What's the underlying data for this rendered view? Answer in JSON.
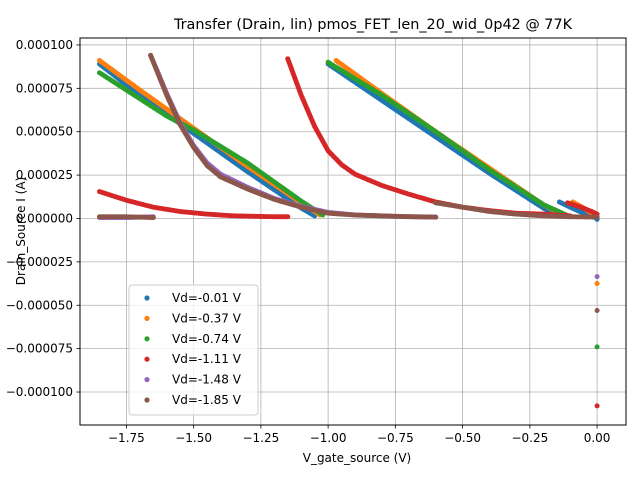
{
  "chart_data": {
    "type": "scatter",
    "title": "Transfer (Drain, lin) pmos_FET_len_20_wid_0p42 @ 77K",
    "xlabel": "V_gate_source (V)",
    "ylabel": "Drain_Source I (A)",
    "xlim": [
      -1.9225,
      0.1075
    ],
    "ylim": [
      -0.000119,
      0.000104
    ],
    "x_ticks": [
      -1.75,
      -1.5,
      -1.25,
      -1.0,
      -0.75,
      -0.5,
      -0.25,
      0.0
    ],
    "x_tick_labels": [
      "−1.75",
      "−1.50",
      "−1.25",
      "−1.00",
      "−0.75",
      "−0.50",
      "−0.25",
      "0.00"
    ],
    "y_ticks": [
      -0.0001,
      -7.5e-05,
      -5e-05,
      -2.5e-05,
      0.0,
      2.5e-05,
      5e-05,
      7.5e-05,
      0.0001
    ],
    "y_tick_labels": [
      "−0.000100",
      "−0.000075",
      "−0.000050",
      "−0.000025",
      "0.000000",
      "0.000025",
      "0.000050",
      "0.000075",
      "0.000100"
    ],
    "grid": true,
    "legend_position": "lower-left",
    "series": [
      {
        "name": "Vd=-0.01 V",
        "color": "#1f77b4",
        "segments": [
          [
            [
              -1.85,
              8.9e-05
            ],
            [
              -1.7,
              7.1e-05
            ],
            [
              -1.5,
              4.9e-05
            ],
            [
              -1.3,
              2.7e-05
            ],
            [
              -1.1,
              6e-06
            ],
            [
              -1.05,
              1.5e-06
            ]
          ],
          [
            [
              -1.0,
              8.9e-05
            ],
            [
              -0.8,
              6.8e-05
            ],
            [
              -0.6,
              4.7e-05
            ],
            [
              -0.4,
              2.6e-05
            ],
            [
              -0.2,
              6e-06
            ],
            [
              -0.15,
              1.5e-06
            ]
          ],
          [
            [
              -0.14,
              9.5e-06
            ],
            [
              -0.1,
              6.5e-06
            ],
            [
              -0.05,
              3e-06
            ],
            [
              0.0,
              0.0
            ]
          ]
        ],
        "points": [
          [
            0.0,
            -5e-07
          ]
        ]
      },
      {
        "name": "Vd=-0.37 V",
        "color": "#ff7f0e",
        "segments": [
          [
            [
              -1.85,
              9.1e-05
            ],
            [
              -1.7,
              7.4e-05
            ],
            [
              -1.5,
              5.2e-05
            ],
            [
              -1.3,
              3e-05
            ],
            [
              -1.1,
              9e-06
            ],
            [
              -1.03,
              2e-06
            ]
          ],
          [
            [
              -0.97,
              9.1e-05
            ],
            [
              -0.8,
              7.2e-05
            ],
            [
              -0.6,
              5e-05
            ],
            [
              -0.4,
              2.9e-05
            ],
            [
              -0.2,
              8e-06
            ],
            [
              -0.12,
              1.5e-06
            ]
          ],
          [
            [
              -0.09,
              9.5e-06
            ],
            [
              -0.05,
              6e-06
            ],
            [
              0.0,
              1e-06
            ]
          ]
        ],
        "points": [
          [
            0.0,
            -3.75e-05
          ]
        ]
      },
      {
        "name": "Vd=-0.74 V",
        "color": "#2ca02c",
        "segments": [
          [
            [
              -1.85,
              8.4e-05
            ],
            [
              -1.75,
              7.4e-05
            ],
            [
              -1.6,
              5.9e-05
            ],
            [
              -1.5,
              5.1e-05
            ],
            [
              -1.3,
              3.2e-05
            ],
            [
              -1.1,
              1e-05
            ],
            [
              -1.02,
              2e-06
            ]
          ],
          [
            [
              -1.0,
              9e-05
            ],
            [
              -0.8,
              7.1e-05
            ],
            [
              -0.6,
              5e-05
            ],
            [
              -0.4,
              2.8e-05
            ],
            [
              -0.2,
              8e-06
            ],
            [
              -0.1,
              1e-06
            ]
          ]
        ],
        "points": [
          [
            0.0,
            -7.4e-05
          ]
        ]
      },
      {
        "name": "Vd=-1.11 V",
        "color": "#d62728",
        "segments": [
          [
            [
              -1.85,
              1.55e-05
            ],
            [
              -1.75,
              1.05e-05
            ],
            [
              -1.65,
              6.5e-06
            ],
            [
              -1.55,
              4e-06
            ],
            [
              -1.45,
              2.5e-06
            ],
            [
              -1.35,
              1.5e-06
            ],
            [
              -1.2,
              1e-06
            ],
            [
              -1.15,
              1e-06
            ]
          ],
          [
            [
              -1.15,
              9.2e-05
            ],
            [
              -1.1,
              7.1e-05
            ],
            [
              -1.05,
              5.3e-05
            ],
            [
              -1.0,
              3.9e-05
            ],
            [
              -0.95,
              3.1e-05
            ],
            [
              -0.9,
              2.55e-05
            ],
            [
              -0.8,
              1.9e-05
            ],
            [
              -0.7,
              1.4e-05
            ],
            [
              -0.6,
              9.5e-06
            ],
            [
              -0.5,
              6.5e-06
            ],
            [
              -0.4,
              4.5e-06
            ],
            [
              -0.3,
              3e-06
            ],
            [
              -0.2,
              2.5e-06
            ],
            [
              -0.1,
              1.5e-06
            ]
          ],
          [
            [
              -0.11,
              9e-06
            ],
            [
              -0.06,
              6.5e-06
            ],
            [
              -0.02,
              4e-06
            ],
            [
              0.0,
              2.5e-06
            ]
          ]
        ],
        "points": [
          [
            0.0,
            -0.000108
          ]
        ]
      },
      {
        "name": "Vd=-1.48 V",
        "color": "#9467bd",
        "segments": [
          [
            [
              -1.85,
              5e-07
            ],
            [
              -1.75,
              5e-07
            ],
            [
              -1.65,
              1e-06
            ]
          ],
          [
            [
              -1.66,
              9.4e-05
            ],
            [
              -1.6,
              7.2e-05
            ],
            [
              -1.55,
              5.5e-05
            ],
            [
              -1.5,
              4.2e-05
            ],
            [
              -1.45,
              3.2e-05
            ],
            [
              -1.4,
              2.55e-05
            ],
            [
              -1.3,
              1.8e-05
            ],
            [
              -1.2,
              1.15e-05
            ],
            [
              -1.1,
              7e-06
            ],
            [
              -1.0,
              3.5e-06
            ],
            [
              -0.9,
              2e-06
            ],
            [
              -0.75,
              1.2e-06
            ],
            [
              -0.6,
              8e-07
            ]
          ]
        ],
        "points": [
          [
            0.0,
            -3.35e-05
          ]
        ]
      },
      {
        "name": "Vd=-1.85 V",
        "color": "#8c564b",
        "segments": [
          [
            [
              -1.85,
              1e-06
            ],
            [
              -1.75,
              1e-06
            ],
            [
              -1.65,
              5e-07
            ]
          ],
          [
            [
              -1.66,
              9.4e-05
            ],
            [
              -1.6,
              7.1e-05
            ],
            [
              -1.55,
              5.4e-05
            ],
            [
              -1.5,
              4.1e-05
            ],
            [
              -1.45,
              3.05e-05
            ],
            [
              -1.4,
              2.4e-05
            ],
            [
              -1.3,
              1.7e-05
            ],
            [
              -1.2,
              1.1e-05
            ],
            [
              -1.1,
              6.5e-06
            ],
            [
              -1.0,
              3e-06
            ],
            [
              -0.9,
              2e-06
            ],
            [
              -0.8,
              1.5e-06
            ],
            [
              -0.7,
              1e-06
            ],
            [
              -0.6,
              8e-07
            ]
          ],
          [
            [
              -0.6,
              9e-06
            ],
            [
              -0.5,
              6.5e-06
            ],
            [
              -0.4,
              4e-06
            ],
            [
              -0.3,
              2.5e-06
            ],
            [
              -0.2,
              1.5e-06
            ],
            [
              -0.1,
              1e-06
            ],
            [
              0.0,
              8e-07
            ]
          ]
        ],
        "points": [
          [
            0.0,
            -5.3e-05
          ]
        ]
      }
    ]
  }
}
